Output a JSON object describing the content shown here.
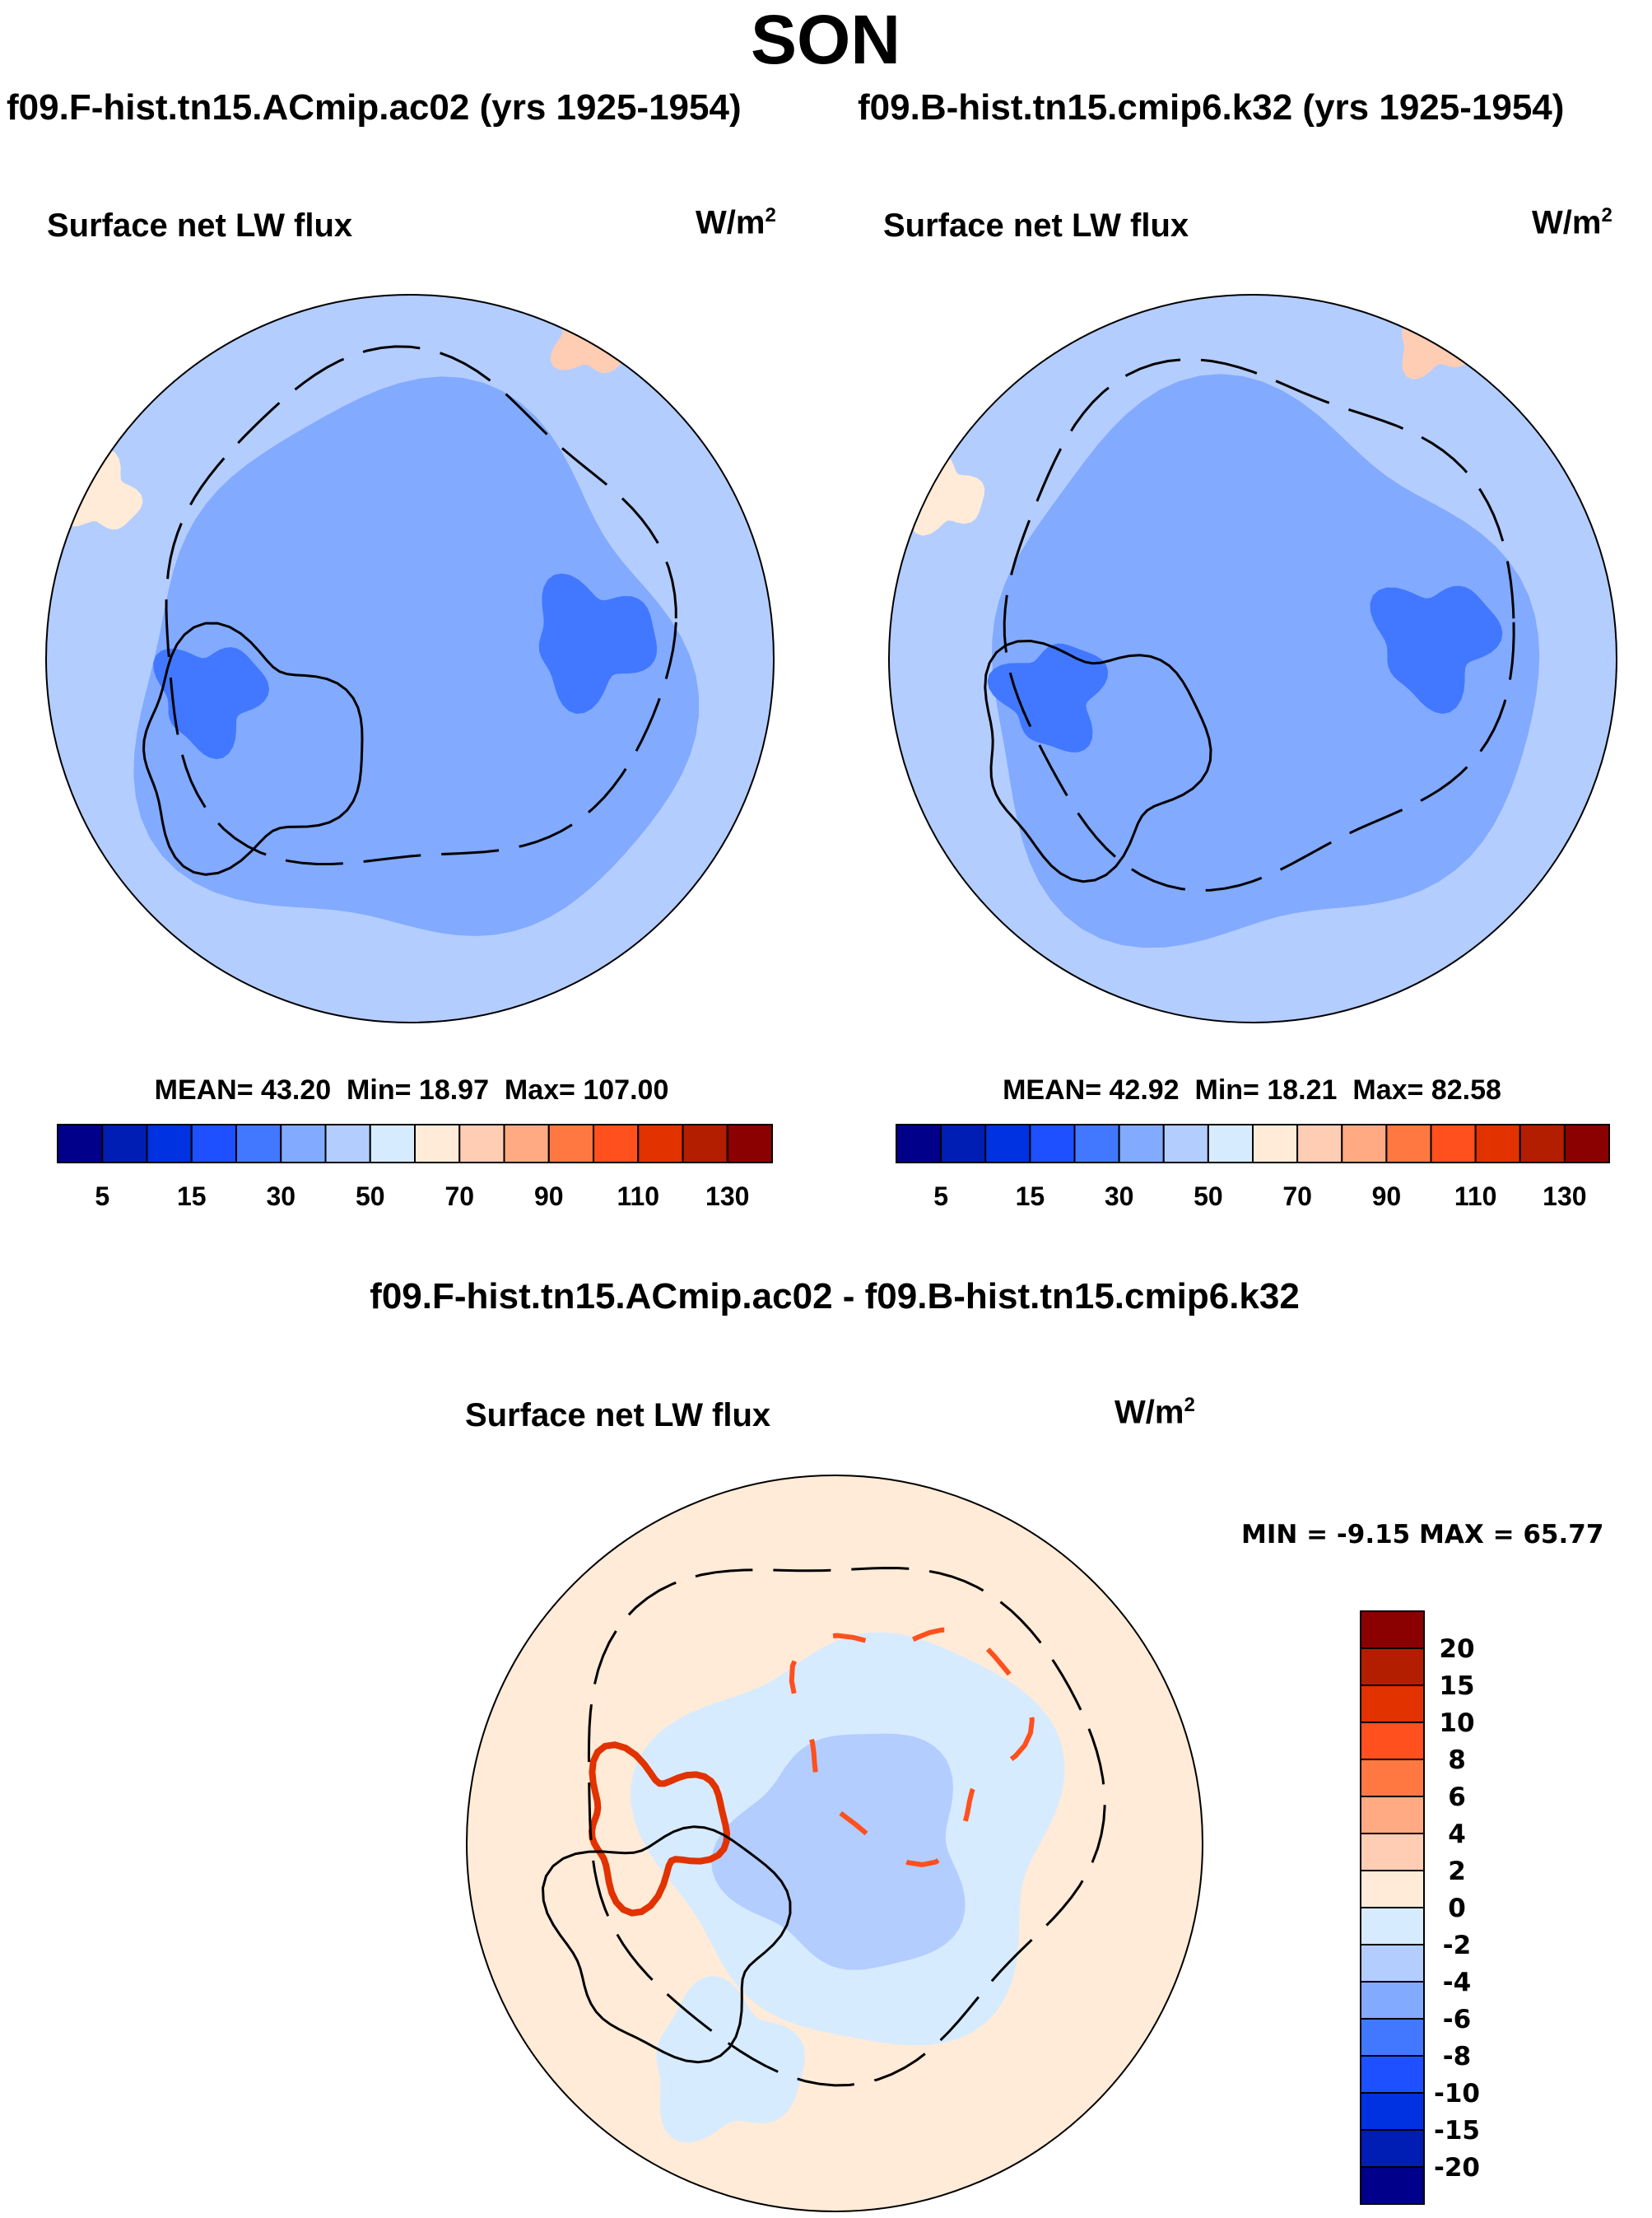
{
  "chart_data": {
    "type": "heatmap",
    "title": "SON",
    "panels": [
      {
        "case_title": "f09.F-hist.tn15.ACmip.ac02 (yrs 1925-1954)",
        "variable": "Surface net LW flux",
        "units": "W/m",
        "units_sup": "2",
        "stats": {
          "mean_label": "MEAN=",
          "mean": "43.20",
          "min_label": "Min=",
          "min": "18.97",
          "max_label": "Max=",
          "max": "107.00"
        },
        "projection": "north-polar-stereographic"
      },
      {
        "case_title": "f09.B-hist.tn15.cmip6.k32 (yrs 1925-1954)",
        "variable": "Surface net LW flux",
        "units": "W/m",
        "units_sup": "2",
        "stats": {
          "mean_label": "MEAN=",
          "mean": "42.92",
          "min_label": "Min=",
          "min": "18.21",
          "max_label": "Max=",
          "max": "82.58"
        },
        "projection": "north-polar-stereographic"
      },
      {
        "case_title": "f09.F-hist.tn15.ACmip.ac02 - f09.B-hist.tn15.cmip6.k32",
        "variable": "Surface net LW flux",
        "units": "W/m",
        "units_sup": "2",
        "stats_text": "MIN =  -9.15 MAX =  65.77",
        "projection": "north-polar-stereographic"
      }
    ],
    "colorbar_abs": {
      "levels": [
        5,
        10,
        15,
        20,
        30,
        40,
        50,
        60,
        70,
        80,
        90,
        100,
        110,
        120,
        130
      ],
      "tick_labels": [
        "5",
        "15",
        "30",
        "50",
        "70",
        "90",
        "110",
        "130"
      ],
      "colors": [
        "#00008b",
        "#001eb4",
        "#0032e1",
        "#1e50ff",
        "#4178ff",
        "#82aaff",
        "#b4cdff",
        "#d7ebff",
        "#ffebd7",
        "#ffcdb4",
        "#ffaa82",
        "#ff7841",
        "#ff501e",
        "#e13200",
        "#b41e00",
        "#8b0000"
      ]
    },
    "colorbar_diff": {
      "levels": [
        -20,
        -15,
        -10,
        -8,
        -6,
        -4,
        -2,
        0,
        2,
        4,
        6,
        8,
        10,
        15,
        20
      ],
      "tick_labels": [
        "-20",
        "-15",
        "-10",
        "-8",
        "-6",
        "-4",
        "-2",
        "0",
        "2",
        "4",
        "6",
        "8",
        "10",
        "15",
        "20"
      ],
      "colors": [
        "#00008b",
        "#001eb4",
        "#0032e1",
        "#1e50ff",
        "#4178ff",
        "#82aaff",
        "#b4cdff",
        "#d7ebff",
        "#ffebd7",
        "#ffcdb4",
        "#ffaa82",
        "#ff7841",
        "#ff501e",
        "#e13200",
        "#b41e00",
        "#8b0000"
      ]
    }
  }
}
